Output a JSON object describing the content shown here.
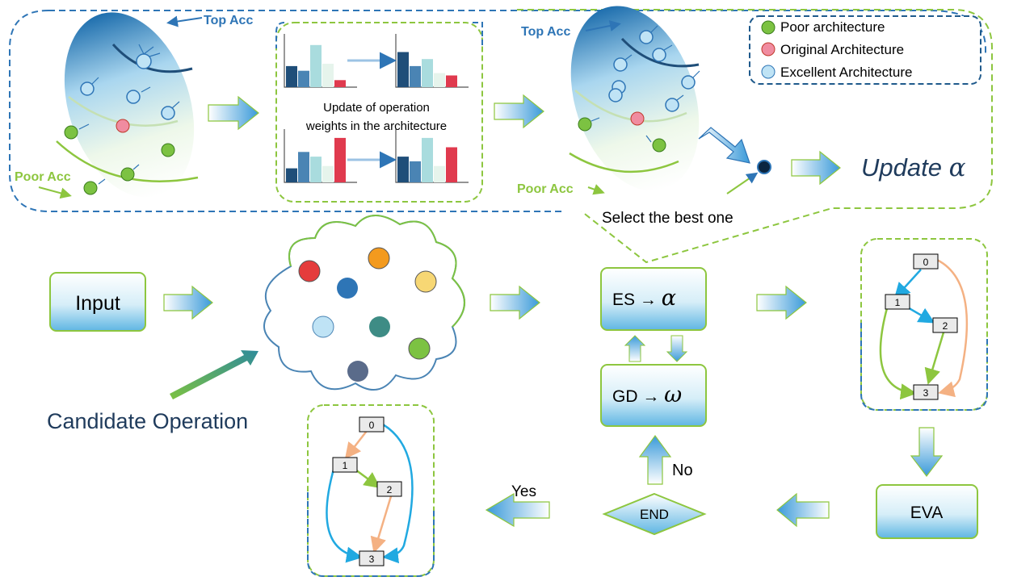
{
  "top_panel": {
    "top_acc_left": "Top Acc",
    "poor_acc_left": "Poor Acc",
    "top_acc_right": "Top Acc",
    "poor_acc_right": "Poor Acc",
    "update_text_line1": "Update of operation",
    "update_text_line2": "weights in the architecture",
    "update_alpha_text": "Update",
    "update_alpha_symbol": "α",
    "select_best": "Select the best one"
  },
  "legend": {
    "items": [
      {
        "label": "Poor architecture",
        "color": "#7cc242"
      },
      {
        "label": "Original Architecture",
        "color": "#f08ca0"
      },
      {
        "label": "Excellent Architecture",
        "color": "#bfe3f5"
      }
    ]
  },
  "flow": {
    "input_label": "Input",
    "candidate_operation": "Candidate Operation",
    "es_label": "ES",
    "es_symbol": "α",
    "gd_label": "GD",
    "gd_symbol": "ω",
    "eva_label": "EVA",
    "end_label": "END",
    "no_label": "No",
    "yes_label": "Yes"
  },
  "graph_right": {
    "nodes": [
      "0",
      "1",
      "2",
      "3"
    ]
  },
  "graph_left": {
    "nodes": [
      "0",
      "1",
      "2",
      "3"
    ]
  },
  "colors": {
    "blue_dark": "#1f5a8c",
    "blue_dashed": "#2e75b6",
    "green_dashed": "#8dc63f",
    "poor_green": "#7cc242",
    "original_pink": "#f08ca0",
    "excellent_blue": "#bfe3f5",
    "edge_orange": "#f4b183",
    "edge_blue": "#21a9e1",
    "edge_green": "#8dc63f"
  },
  "bars": {
    "top_left": [
      0.45,
      0.35,
      0.9,
      0.5,
      0.15
    ],
    "top_right": [
      0.75,
      0.45,
      0.6,
      0.3,
      0.25
    ],
    "bottom_left": [
      0.3,
      0.65,
      0.55,
      0.35,
      0.95
    ],
    "bottom_right": [
      0.55,
      0.45,
      0.95,
      0.35,
      0.75
    ],
    "palette": [
      "#1f4e79",
      "#4a84b4",
      "#a9dcde",
      "#e6f4ec",
      "#e03a4e"
    ]
  }
}
